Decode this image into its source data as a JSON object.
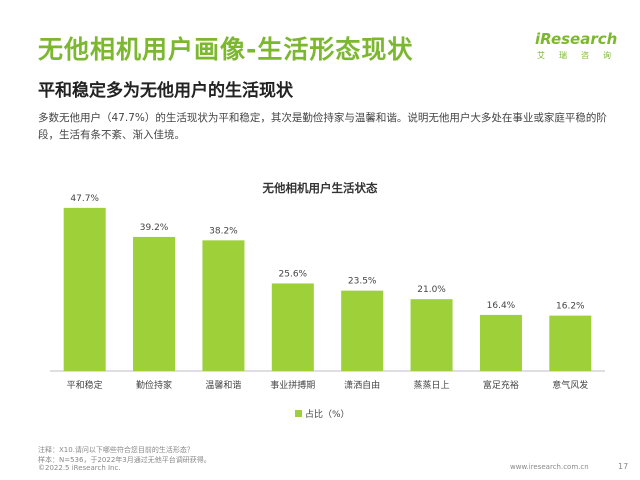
{
  "header": {
    "title": "无他相机用户画像-生活形态现状",
    "subtitle": "平和稳定多为无他用户的生活现状",
    "description": "多数无他用户（47.7%）的生活现状为平和稳定，其次是勤俭持家与温馨和谐。说明无他用户大多处在事业或家庭平稳的阶段，生活有条不紊、渐入佳境。"
  },
  "logo": {
    "name": "iResearch",
    "sub": [
      "艾",
      "瑞",
      "咨",
      "询"
    ]
  },
  "chart_data": {
    "type": "bar",
    "title": "无他相机用户生活状态",
    "categories": [
      "平和稳定",
      "勤俭持家",
      "温馨和谐",
      "事业拼搏期",
      "潇洒自由",
      "蒸蒸日上",
      "富足充裕",
      "意气风发"
    ],
    "series": [
      {
        "name": "占比（%）",
        "values": [
          47.7,
          39.2,
          38.2,
          25.6,
          23.5,
          21.0,
          16.4,
          16.2
        ],
        "labels": [
          "47.7%",
          "39.2%",
          "38.2%",
          "25.6%",
          "23.5%",
          "21.0%",
          "16.4%",
          "16.2%"
        ],
        "color": "#9ed039"
      }
    ],
    "ylim": [
      0,
      50
    ],
    "grid": false,
    "legend_position": "bottom-center"
  },
  "notes": {
    "line1": "注释：X10.请问以下哪些符合您目前的生活形态？",
    "line2": "样本：N=536，于2022年3月通过无他平台调研获得。"
  },
  "footer": {
    "copyright": "©2022.5 iResearch Inc.",
    "url": "www.iresearch.com.cn",
    "page": "17"
  }
}
